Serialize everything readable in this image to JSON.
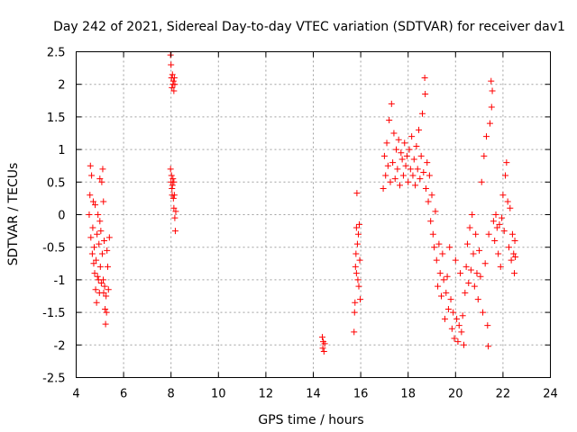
{
  "chart_data": {
    "type": "scatter",
    "title": "Day 242 of 2021, Sidereal Day-to-day VTEC variation (SDTVAR) for receiver dav1",
    "xlabel": "GPS time / hours",
    "ylabel": "SDTVAR / TECUs",
    "xlim": [
      4,
      24
    ],
    "ylim": [
      -2.5,
      2.5
    ],
    "xticks": [
      4,
      6,
      8,
      10,
      12,
      14,
      16,
      18,
      20,
      22,
      24
    ],
    "yticks": [
      -2.5,
      -2,
      -1.5,
      -1,
      -0.5,
      0,
      0.5,
      1,
      1.5,
      2,
      2.5
    ],
    "ytick_labels": [
      "-2.5",
      "-2",
      "-1.5",
      "-1",
      "-0.5",
      "0",
      "0.5",
      "1",
      "1.5",
      "2",
      "2.5"
    ],
    "grid": true,
    "marker": "+",
    "color": "#ff0000",
    "series": [
      {
        "name": "SDTVAR",
        "points": [
          [
            4.55,
            0.0
          ],
          [
            4.58,
            0.3
          ],
          [
            4.6,
            0.75
          ],
          [
            4.62,
            -0.35
          ],
          [
            4.65,
            0.6
          ],
          [
            4.68,
            -0.6
          ],
          [
            4.7,
            -0.2
          ],
          [
            4.72,
            0.2
          ],
          [
            4.74,
            -0.75
          ],
          [
            4.76,
            -0.5
          ],
          [
            4.78,
            -0.9
          ],
          [
            4.8,
            0.15
          ],
          [
            4.82,
            -1.15
          ],
          [
            4.84,
            -0.7
          ],
          [
            4.86,
            -1.35
          ],
          [
            4.88,
            -0.3
          ],
          [
            4.9,
            -0.95
          ],
          [
            4.92,
            0.0
          ],
          [
            4.94,
            -1.0
          ],
          [
            4.96,
            -0.45
          ],
          [
            4.98,
            -1.2
          ],
          [
            5.0,
            -0.1
          ],
          [
            5.02,
            -0.8
          ],
          [
            5.04,
            -0.25
          ],
          [
            5.06,
            -1.05
          ],
          [
            5.08,
            0.5
          ],
          [
            5.1,
            -0.6
          ],
          [
            5.12,
            0.7
          ],
          [
            5.14,
            -1.0
          ],
          [
            5.16,
            -1.2
          ],
          [
            5.18,
            -0.4
          ],
          [
            5.2,
            -1.1
          ],
          [
            5.22,
            -1.45
          ],
          [
            5.24,
            -1.68
          ],
          [
            5.26,
            -1.25
          ],
          [
            5.28,
            -1.5
          ],
          [
            5.3,
            -0.55
          ],
          [
            5.33,
            -0.8
          ],
          [
            5.36,
            -1.15
          ],
          [
            5.4,
            -0.35
          ],
          [
            5.0,
            0.55
          ],
          [
            5.15,
            0.2
          ],
          [
            7.98,
            2.45
          ],
          [
            8.0,
            2.3
          ],
          [
            8.02,
            2.1
          ],
          [
            8.04,
            1.95
          ],
          [
            8.06,
            2.15
          ],
          [
            8.08,
            2.0
          ],
          [
            8.1,
            2.05
          ],
          [
            8.12,
            1.9
          ],
          [
            8.14,
            2.1
          ],
          [
            8.16,
            2.0
          ],
          [
            7.98,
            0.7
          ],
          [
            8.0,
            0.5
          ],
          [
            8.02,
            0.6
          ],
          [
            8.04,
            0.4
          ],
          [
            8.06,
            0.45
          ],
          [
            8.08,
            0.55
          ],
          [
            8.1,
            0.25
          ],
          [
            8.12,
            0.1
          ],
          [
            8.14,
            0.3
          ],
          [
            8.16,
            -0.05
          ],
          [
            8.18,
            -0.25
          ],
          [
            8.2,
            0.05
          ],
          [
            8.12,
            0.5
          ],
          [
            8.05,
            0.3
          ],
          [
            14.38,
            -1.88
          ],
          [
            14.4,
            -2.05
          ],
          [
            14.42,
            -1.95
          ],
          [
            14.45,
            -2.1
          ],
          [
            14.48,
            -1.98
          ],
          [
            15.72,
            -1.8
          ],
          [
            15.74,
            -1.5
          ],
          [
            15.76,
            -1.35
          ],
          [
            15.78,
            -0.8
          ],
          [
            15.8,
            -0.6
          ],
          [
            15.82,
            -0.2
          ],
          [
            15.84,
            0.33
          ],
          [
            15.86,
            -0.45
          ],
          [
            15.88,
            -1.0
          ],
          [
            15.9,
            -0.3
          ],
          [
            15.92,
            -1.1
          ],
          [
            15.94,
            -0.15
          ],
          [
            15.96,
            -0.7
          ],
          [
            15.98,
            -1.3
          ],
          [
            15.82,
            -0.9
          ],
          [
            16.95,
            0.4
          ],
          [
            17.0,
            0.9
          ],
          [
            17.05,
            0.6
          ],
          [
            17.1,
            1.1
          ],
          [
            17.15,
            0.75
          ],
          [
            17.2,
            1.45
          ],
          [
            17.25,
            0.5
          ],
          [
            17.3,
            1.7
          ],
          [
            17.35,
            0.8
          ],
          [
            17.4,
            1.25
          ],
          [
            17.45,
            0.55
          ],
          [
            17.5,
            1.0
          ],
          [
            17.55,
            0.7
          ],
          [
            17.6,
            1.15
          ],
          [
            17.65,
            0.45
          ],
          [
            17.7,
            0.95
          ],
          [
            17.75,
            0.85
          ],
          [
            17.8,
            0.6
          ],
          [
            17.85,
            1.1
          ],
          [
            17.9,
            0.75
          ],
          [
            17.95,
            0.9
          ],
          [
            18.0,
            0.5
          ],
          [
            18.05,
            1.0
          ],
          [
            18.1,
            0.7
          ],
          [
            18.15,
            1.2
          ],
          [
            18.2,
            0.6
          ],
          [
            18.25,
            0.85
          ],
          [
            18.3,
            0.45
          ],
          [
            18.35,
            1.05
          ],
          [
            18.4,
            0.7
          ],
          [
            18.45,
            1.3
          ],
          [
            18.5,
            0.55
          ],
          [
            18.55,
            0.9
          ],
          [
            18.6,
            1.55
          ],
          [
            18.65,
            0.65
          ],
          [
            18.7,
            2.1
          ],
          [
            18.72,
            1.85
          ],
          [
            18.75,
            0.4
          ],
          [
            18.8,
            0.8
          ],
          [
            18.85,
            0.2
          ],
          [
            18.9,
            0.6
          ],
          [
            18.95,
            -0.1
          ],
          [
            19.0,
            0.3
          ],
          [
            19.05,
            -0.3
          ],
          [
            19.1,
            -0.5
          ],
          [
            19.15,
            0.05
          ],
          [
            19.2,
            -0.7
          ],
          [
            19.25,
            -1.1
          ],
          [
            19.3,
            -0.45
          ],
          [
            19.35,
            -0.9
          ],
          [
            19.4,
            -1.25
          ],
          [
            19.45,
            -0.6
          ],
          [
            19.5,
            -1.0
          ],
          [
            19.55,
            -1.6
          ],
          [
            19.6,
            -1.2
          ],
          [
            19.65,
            -0.95
          ],
          [
            19.7,
            -1.45
          ],
          [
            19.75,
            -0.5
          ],
          [
            19.8,
            -1.3
          ],
          [
            19.85,
            -1.75
          ],
          [
            19.9,
            -1.5
          ],
          [
            19.95,
            -1.9
          ],
          [
            20.0,
            -0.7
          ],
          [
            20.05,
            -1.6
          ],
          [
            20.1,
            -1.95
          ],
          [
            20.15,
            -1.7
          ],
          [
            20.2,
            -0.9
          ],
          [
            20.25,
            -1.8
          ],
          [
            20.3,
            -1.55
          ],
          [
            20.35,
            -2.0
          ],
          [
            20.4,
            -1.2
          ],
          [
            20.45,
            -0.8
          ],
          [
            20.5,
            -0.45
          ],
          [
            20.55,
            -1.05
          ],
          [
            20.6,
            -0.2
          ],
          [
            20.65,
            -0.85
          ],
          [
            20.7,
            0.0
          ],
          [
            20.75,
            -0.6
          ],
          [
            20.8,
            -1.1
          ],
          [
            20.85,
            -0.3
          ],
          [
            20.9,
            -0.9
          ],
          [
            20.95,
            -1.3
          ],
          [
            21.0,
            -0.55
          ],
          [
            21.05,
            -0.95
          ],
          [
            21.1,
            0.5
          ],
          [
            21.15,
            -1.5
          ],
          [
            21.2,
            0.9
          ],
          [
            21.25,
            -0.75
          ],
          [
            21.3,
            1.2
          ],
          [
            21.35,
            -1.7
          ],
          [
            21.38,
            -2.02
          ],
          [
            21.4,
            -0.3
          ],
          [
            21.45,
            1.4
          ],
          [
            21.5,
            2.05
          ],
          [
            21.52,
            1.65
          ],
          [
            21.55,
            1.9
          ],
          [
            21.6,
            -0.1
          ],
          [
            21.65,
            -0.4
          ],
          [
            21.7,
            0.0
          ],
          [
            21.75,
            -0.2
          ],
          [
            21.8,
            -0.6
          ],
          [
            21.85,
            -0.15
          ],
          [
            21.9,
            -0.8
          ],
          [
            21.95,
            -0.05
          ],
          [
            22.0,
            0.3
          ],
          [
            22.05,
            -0.25
          ],
          [
            22.1,
            0.6
          ],
          [
            22.15,
            0.8
          ],
          [
            22.2,
            0.2
          ],
          [
            22.25,
            -0.5
          ],
          [
            22.3,
            0.1
          ],
          [
            22.35,
            -0.7
          ],
          [
            22.4,
            -0.3
          ],
          [
            22.45,
            -0.6
          ],
          [
            22.48,
            -0.9
          ],
          [
            22.5,
            -0.4
          ],
          [
            22.52,
            -0.65
          ]
        ]
      }
    ]
  }
}
